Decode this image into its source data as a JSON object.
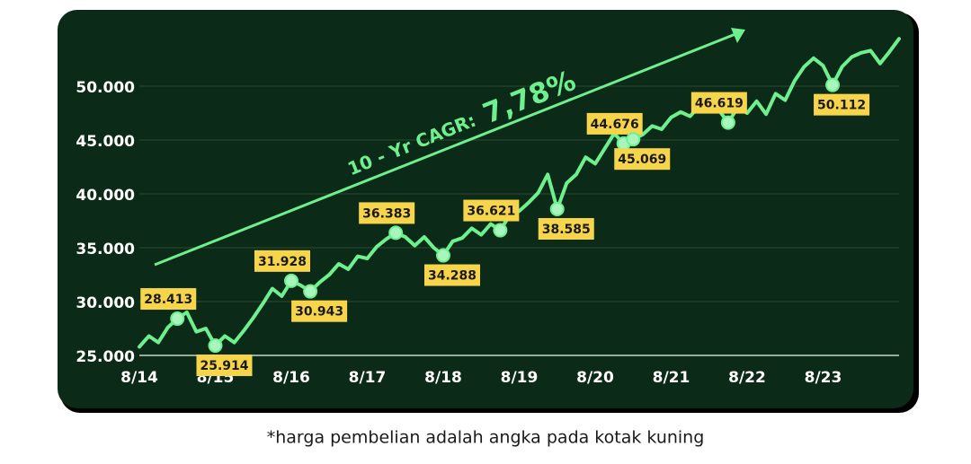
{
  "chart_data": {
    "type": "line",
    "annotation": {
      "text": "10 - Yr CAGR:",
      "value": "7,78%"
    },
    "footnote": "*harga pembelian adalah angka pada kotak kuning",
    "categories": [
      "8/14",
      null,
      null,
      null,
      null,
      null,
      null,
      null,
      "8/15",
      null,
      null,
      null,
      null,
      null,
      null,
      null,
      "8/16",
      null,
      null,
      null,
      null,
      null,
      null,
      null,
      "8/17",
      null,
      null,
      null,
      null,
      null,
      null,
      null,
      "8/18",
      null,
      null,
      null,
      null,
      null,
      null,
      null,
      "8/19",
      null,
      null,
      null,
      null,
      null,
      null,
      null,
      "8/20",
      null,
      null,
      null,
      null,
      null,
      null,
      null,
      "8/21",
      null,
      null,
      null,
      null,
      null,
      null,
      null,
      "8/22",
      null,
      null,
      null,
      null,
      null,
      null,
      null,
      "8/23",
      null,
      null,
      null,
      null,
      null,
      null,
      null,
      null
    ],
    "series": [
      {
        "color": "#6ef08f",
        "values": [
          25800,
          26800,
          26200,
          27600,
          28413,
          29000,
          27200,
          27500,
          25914,
          26800,
          26200,
          27300,
          28500,
          29800,
          31200,
          30500,
          31928,
          31500,
          30943,
          31800,
          32500,
          33500,
          33000,
          34200,
          34000,
          35100,
          35800,
          36383,
          36000,
          35200,
          36000,
          35000,
          34288,
          35600,
          35900,
          36800,
          36200,
          37200,
          36621,
          38000,
          38400,
          39200,
          40100,
          41800,
          38585,
          41000,
          41800,
          43400,
          42800,
          44200,
          45600,
          44676,
          45069,
          45500,
          46300,
          46000,
          47100,
          47600,
          47200,
          48200,
          48600,
          47800,
          46619,
          48000,
          47500,
          48600,
          47400,
          49300,
          48700,
          50500,
          51800,
          52600,
          51900,
          50112,
          51800,
          52700,
          53100,
          53300,
          52100,
          53200,
          54400
        ]
      },
      {
        "color": "#f7d54a",
        "values": [
          null,
          null,
          null,
          null,
          28413,
          null,
          null,
          null,
          25914,
          null,
          null,
          null,
          null,
          null,
          null,
          null,
          31928,
          null,
          30943,
          null,
          null,
          null,
          null,
          null,
          null,
          null,
          null,
          36383,
          null,
          null,
          null,
          null,
          34288,
          null,
          null,
          null,
          null,
          null,
          36621,
          null,
          null,
          null,
          null,
          null,
          38585,
          null,
          null,
          null,
          null,
          null,
          null,
          44676,
          45069,
          null,
          null,
          null,
          null,
          null,
          null,
          null,
          null,
          null,
          46619,
          null,
          null,
          null,
          null,
          null,
          null,
          null,
          null,
          null,
          null,
          50112,
          null,
          null,
          null,
          null,
          null,
          null,
          null
        ],
        "value_labels": [
          null,
          null,
          null,
          null,
          "28.413",
          null,
          null,
          null,
          "25.914",
          null,
          null,
          null,
          null,
          null,
          null,
          null,
          "31.928",
          null,
          "30.943",
          null,
          null,
          null,
          null,
          null,
          null,
          null,
          null,
          "36.383",
          null,
          null,
          null,
          null,
          "34.288",
          null,
          null,
          null,
          null,
          null,
          "36.621",
          null,
          null,
          null,
          null,
          null,
          "38.585",
          null,
          null,
          null,
          null,
          null,
          null,
          "44.676",
          "45.069",
          null,
          null,
          null,
          null,
          null,
          null,
          null,
          null,
          null,
          "46.619",
          null,
          null,
          null,
          null,
          null,
          null,
          null,
          null,
          null,
          null,
          "50.112",
          null,
          null,
          null,
          null,
          null,
          null,
          null
        ]
      }
    ],
    "ylim": [
      25000,
      55000
    ],
    "yticks": [
      {
        "value": 25000,
        "label": "25.000"
      },
      {
        "value": 30000,
        "label": "30.000"
      },
      {
        "value": 35000,
        "label": "35.000"
      },
      {
        "value": 40000,
        "label": "40.000"
      },
      {
        "value": 45000,
        "label": "45.000"
      },
      {
        "value": 50000,
        "label": "50.000"
      }
    ],
    "grid": true
  }
}
